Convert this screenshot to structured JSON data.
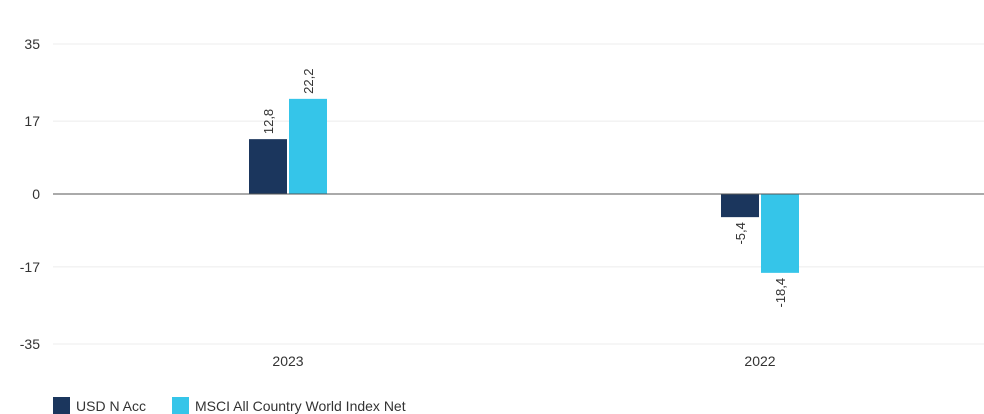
{
  "chart_data": {
    "type": "bar",
    "categories": [
      "2023",
      "2022"
    ],
    "series": [
      {
        "name": "USD N Acc",
        "values": [
          12.8,
          -5.4
        ],
        "value_labels": [
          "12,8",
          "-5,4"
        ],
        "color": "#1b365d"
      },
      {
        "name": "MSCI All Country World Index Net",
        "values": [
          22.2,
          -18.4
        ],
        "value_labels": [
          "22,2",
          "-18,4"
        ],
        "color": "#35c5e9"
      }
    ],
    "yticks": [
      35,
      17,
      0,
      -17,
      -35
    ],
    "ylim": [
      -35,
      35
    ],
    "grid": true,
    "legend_position": "bottom-left",
    "title": "",
    "xlabel": "",
    "ylabel": ""
  }
}
